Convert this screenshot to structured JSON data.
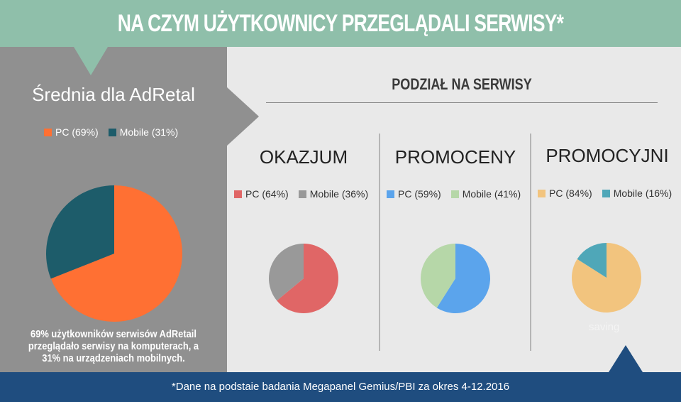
{
  "header": {
    "title": "NA CZYM UŻYTKOWNICY PRZEGLĄDALI SERWISY*"
  },
  "section": {
    "title": "PODZIAŁ NA SERWISY"
  },
  "overlay_text": "saving",
  "footer": {
    "note": "*Dane na podstaie badania Megapanel  Gemius/PBI za okres 4-12.2016"
  },
  "chart_data": [
    {
      "type": "pie",
      "title": "Średnia dla AdRetal",
      "categories": [
        "PC",
        "Mobile"
      ],
      "legend": [
        "PC (69%)",
        "Mobile (31%)"
      ],
      "values": [
        69,
        31
      ],
      "colors": [
        "#ff7033",
        "#1d5c6a"
      ],
      "description": "69% użytkowników serwisów AdRetail przeglądało serwisy na komputerach, a 31% na urządzeniach mobilnych."
    },
    {
      "type": "pie",
      "title": "OKAZJUM",
      "categories": [
        "PC",
        "Mobile"
      ],
      "legend": [
        "PC (64%)",
        "Mobile (36%)"
      ],
      "values": [
        64,
        36
      ],
      "colors": [
        "#e06666",
        "#999999"
      ]
    },
    {
      "type": "pie",
      "title": "PROMOCENY",
      "categories": [
        "PC",
        "Mobile"
      ],
      "legend": [
        "PC (59%)",
        "Mobile (41%)"
      ],
      "values": [
        59,
        41
      ],
      "colors": [
        "#5ba4ec",
        "#b6d7a8"
      ]
    },
    {
      "type": "pie",
      "title": "PROMOCYJNI",
      "categories": [
        "PC",
        "Mobile"
      ],
      "legend": [
        "PC (84%)",
        "Mobile (16%)"
      ],
      "values": [
        84,
        16
      ],
      "colors": [
        "#f2c47e",
        "#4fa7b8"
      ]
    }
  ]
}
